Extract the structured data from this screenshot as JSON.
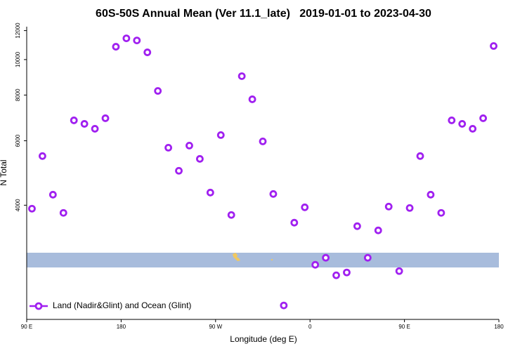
{
  "chart_data": {
    "type": "scatter",
    "title": "60S-50S Annual Mean (Ver 11.1_late)   2019-01-01 to 2023-04-30",
    "x_label": "Longitude (deg E)",
    "y_label": "N Total",
    "xlim": [
      90,
      540
    ],
    "ylim": [
      1950,
      12300
    ],
    "y_log": true,
    "legend": "lower left",
    "xticks": [
      {
        "value": 90,
        "label": "90 E"
      },
      180,
      {
        "value": 270,
        "label": "90 W"
      },
      {
        "value": 360,
        "label": "0"
      },
      {
        "value": 450,
        "label": "90 E"
      },
      {
        "value": 540,
        "label": "180"
      }
    ],
    "yticks": [
      4000,
      6000,
      8000,
      10000,
      12000
    ],
    "series": [
      {
        "name": "Land (Nadir&Glint) and Ocean (Glint)",
        "color": "#a020f0",
        "x": [
          95,
          105,
          115,
          125,
          135,
          145,
          155,
          165,
          175,
          185,
          195,
          205,
          215,
          225,
          235,
          245,
          255,
          265,
          275,
          285,
          295,
          305,
          315,
          325,
          335,
          345,
          355,
          365,
          375,
          385,
          395,
          405,
          415,
          425,
          435,
          445,
          455,
          465,
          475,
          485,
          495,
          505,
          515,
          525,
          535
        ],
        "values": [
          3914,
          5450,
          4274,
          3812,
          6823,
          6674,
          6471,
          6914,
          10842,
          11430,
          11280,
          10466,
          8210,
          5744,
          4968,
          5821,
          5354,
          4331,
          6219,
          3762,
          9010,
          7789,
          5977,
          4293,
          2129,
          3584,
          3948,
          2750,
          2874,
          2574,
          2620,
          3506,
          2874,
          3414,
          3966,
          2643,
          3931,
          5450,
          4274,
          3812,
          6823,
          6674,
          6471,
          6914,
          10892
        ]
      }
    ]
  }
}
